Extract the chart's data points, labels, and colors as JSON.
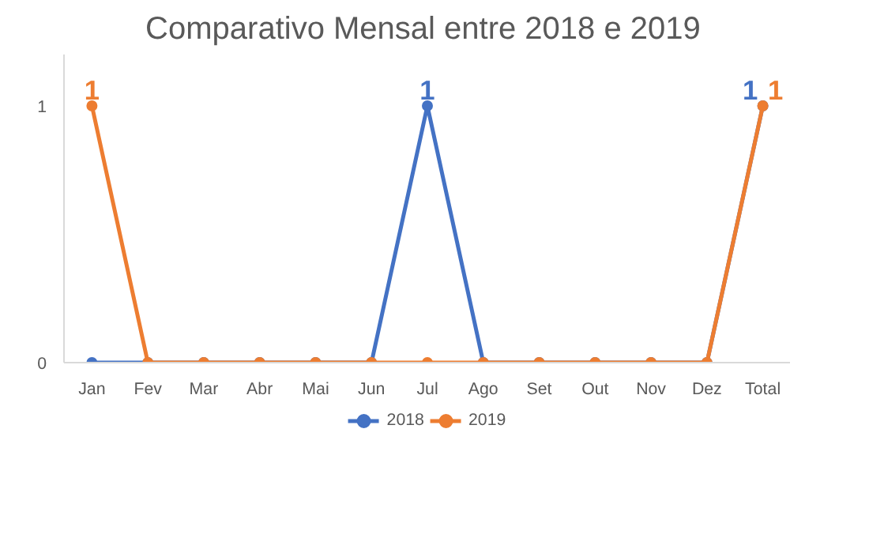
{
  "chart_data": {
    "type": "line",
    "title": "Comparativo Mensal entre  2018 e 2019",
    "categories": [
      "Jan",
      "Fev",
      "Mar",
      "Abr",
      "Mai",
      "Jun",
      "Jul",
      "Ago",
      "Set",
      "Out",
      "Nov",
      "Dez",
      "Total"
    ],
    "series": [
      {
        "name": "2018",
        "color": "#4472c4",
        "values": [
          0,
          0,
          null,
          null,
          null,
          0,
          1,
          0,
          null,
          null,
          null,
          0,
          1
        ],
        "value_labels": [
          null,
          null,
          null,
          null,
          null,
          null,
          "1",
          null,
          null,
          null,
          null,
          null,
          "1"
        ]
      },
      {
        "name": "2019",
        "color": "#ed7d31",
        "values": [
          1,
          0,
          0,
          0,
          0,
          0,
          0,
          0,
          0,
          0,
          0,
          0,
          1
        ],
        "value_labels": [
          "1",
          null,
          null,
          null,
          null,
          null,
          null,
          null,
          null,
          null,
          null,
          null,
          "1"
        ]
      }
    ],
    "ylim": [
      0,
      1.2
    ],
    "yticks": [
      0,
      1
    ],
    "grid": false,
    "legend": "bottom",
    "marker": "circle",
    "line_style": "solid"
  }
}
